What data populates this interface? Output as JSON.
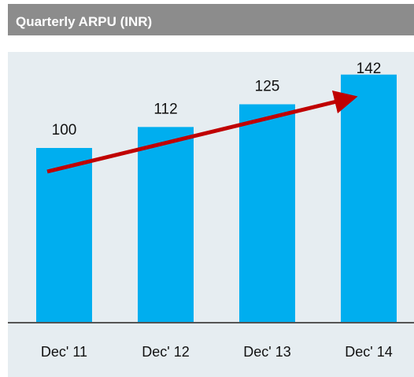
{
  "chart_data": {
    "type": "bar",
    "title": "Quarterly ARPU (INR)",
    "categories": [
      "Dec' 11",
      "Dec' 12",
      "Dec' 13",
      "Dec' 14"
    ],
    "values": [
      100,
      112,
      125,
      142
    ],
    "color": "#00aeef",
    "ylim": [
      0,
      150
    ]
  }
}
